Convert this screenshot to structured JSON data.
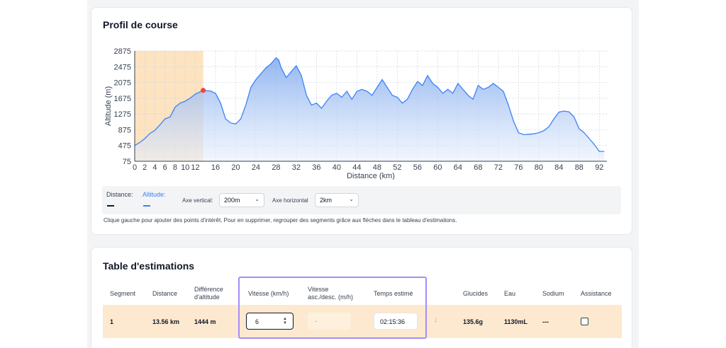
{
  "profile": {
    "title": "Profil de course",
    "legend": {
      "distance_label": "Distance:",
      "altitude_label": "Altitude:",
      "distance_color": "#111827",
      "altitude_color": "#3b82f6"
    },
    "controls": {
      "vertical_axis_label": "Axe vertical:",
      "vertical_axis_value": "200m",
      "horizontal_axis_label": "Axe horizontal",
      "horizontal_axis_value": "2km"
    },
    "hint": "Clique gauche pour ajouter des points d'intérêt. Pour en supprimer, regrouper des segments grâce aux flèches dans le tableau d'estimations."
  },
  "chart_data": {
    "type": "area",
    "xlabel": "Distance (km)",
    "ylabel": "Altitude (m)",
    "xlim": [
      0,
      93.5
    ],
    "ylim": [
      75,
      2875
    ],
    "x_ticks": [
      0,
      2,
      4,
      6,
      8,
      10,
      12,
      16,
      20,
      24,
      28,
      32,
      36,
      40,
      44,
      48,
      52,
      56,
      60,
      64,
      68,
      72,
      76,
      80,
      84,
      88,
      92
    ],
    "y_ticks": [
      75,
      475,
      875,
      1275,
      1675,
      2075,
      2475,
      2875
    ],
    "grid": true,
    "selected_segment": [
      0,
      13.56
    ],
    "marker": {
      "x": 13.56,
      "y": 1875
    },
    "x": [
      0,
      1,
      2,
      3,
      4,
      5,
      6,
      7,
      8,
      9,
      10,
      11,
      12,
      13.56,
      15,
      16,
      17,
      18,
      19,
      20,
      21,
      22,
      23,
      24,
      25,
      26,
      27,
      28,
      28.5,
      29,
      30,
      31,
      32,
      33,
      34,
      35,
      36,
      37,
      38,
      39,
      40,
      41,
      42,
      43,
      44,
      45,
      46,
      47,
      48,
      49,
      50,
      51,
      52,
      53,
      54,
      55,
      56,
      57,
      58,
      59,
      60,
      61,
      62,
      63,
      64,
      65,
      66,
      67,
      68,
      69,
      70,
      71,
      72,
      73,
      74,
      75,
      76,
      77,
      78,
      79,
      80,
      81,
      82,
      83,
      84,
      85,
      86,
      87,
      88,
      89,
      90,
      91,
      92,
      93
    ],
    "values": [
      475,
      550,
      650,
      780,
      860,
      1000,
      1150,
      1200,
      1450,
      1550,
      1600,
      1680,
      1780,
      1875,
      1860,
      1800,
      1550,
      1150,
      1050,
      1020,
      1150,
      1500,
      1950,
      2150,
      2300,
      2450,
      2550,
      2700,
      2650,
      2450,
      2200,
      2350,
      2500,
      2250,
      1750,
      1500,
      1550,
      1420,
      1600,
      1750,
      1800,
      1700,
      1850,
      1650,
      1850,
      1900,
      1850,
      1750,
      1950,
      2150,
      1950,
      1750,
      1700,
      1550,
      1650,
      1900,
      2100,
      2000,
      2250,
      2050,
      1950,
      1800,
      1900,
      1800,
      2050,
      1900,
      1750,
      1650,
      2000,
      1900,
      1950,
      2050,
      1950,
      1850,
      1500,
      1100,
      800,
      750,
      760,
      770,
      800,
      850,
      950,
      1150,
      1320,
      1350,
      1330,
      1200,
      900,
      800,
      650,
      500,
      325,
      325
    ]
  },
  "estimates": {
    "title": "Table d'estimations",
    "columns": [
      "Segment",
      "Distance",
      "Différence\nd'altitude",
      "Vitesse (km/h)",
      "Vitesse\nasc./desc. (m/h)",
      "Temps estimé",
      "Glucides",
      "Eau",
      "Sodium",
      "Assistance"
    ],
    "rows": [
      {
        "segment": "1",
        "distance": "13.56 km",
        "altitude_diff": "1444 m",
        "speed": "6",
        "asc_speed_placeholder": "-",
        "time": "02:15:36",
        "glucides": "135.6g",
        "eau": "1130mL",
        "sodium": "---"
      }
    ]
  }
}
